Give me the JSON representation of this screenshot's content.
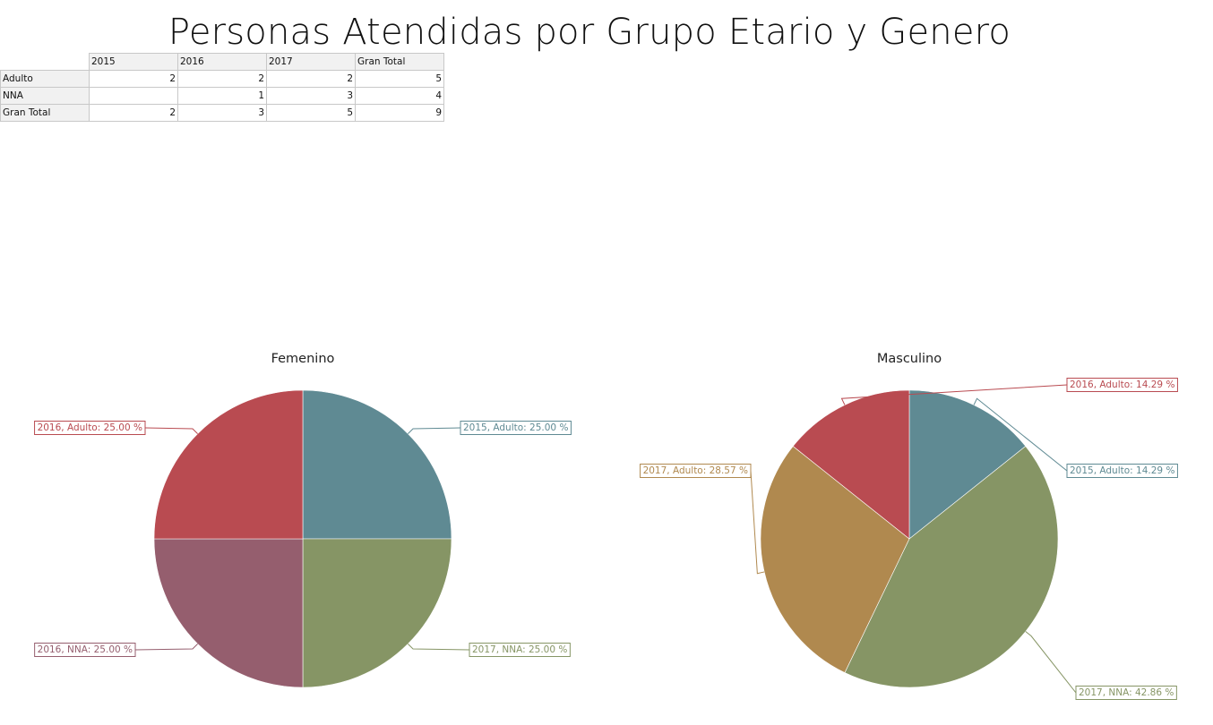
{
  "page": {
    "title": "Personas Atendidas por Grupo Etario y Genero"
  },
  "table": {
    "columns": [
      "2015",
      "2016",
      "2017",
      "Gran Total"
    ],
    "rows": [
      {
        "label": "Adulto",
        "cells": [
          "2",
          "2",
          "2",
          "5"
        ]
      },
      {
        "label": "NNA",
        "cells": [
          "",
          "1",
          "3",
          "4"
        ]
      },
      {
        "label": "Gran Total",
        "cells": [
          "2",
          "3",
          "5",
          "9"
        ]
      }
    ]
  },
  "colors": {
    "2015, Adulto": "#5f8a93",
    "2016, Adulto": "#b94b51",
    "2016, NNA": "#955e6e",
    "2017, NNA": "#869565",
    "2017, Adulto": "#b0894f"
  },
  "chart_data": [
    {
      "type": "pie",
      "title": "Femenino",
      "slices": [
        {
          "name": "2015, Adulto",
          "value": 25.0,
          "label": "2015, Adulto: 25.00 %"
        },
        {
          "name": "2017, NNA",
          "value": 25.0,
          "label": "2017, NNA: 25.00 %"
        },
        {
          "name": "2016, NNA",
          "value": 25.0,
          "label": "2016, NNA: 25.00 %"
        },
        {
          "name": "2016, Adulto",
          "value": 25.0,
          "label": "2016, Adulto: 25.00 %"
        }
      ]
    },
    {
      "type": "pie",
      "title": "Masculino",
      "slices": [
        {
          "name": "2015, Adulto",
          "value": 14.29,
          "label": "2015, Adulto: 14.29 %"
        },
        {
          "name": "2017, NNA",
          "value": 42.86,
          "label": "2017, NNA: 42.86 %"
        },
        {
          "name": "2017, Adulto",
          "value": 28.57,
          "label": "2017, Adulto: 28.57 %"
        },
        {
          "name": "2016, Adulto",
          "value": 14.29,
          "label": "2016, Adulto: 14.29 %"
        }
      ]
    }
  ]
}
